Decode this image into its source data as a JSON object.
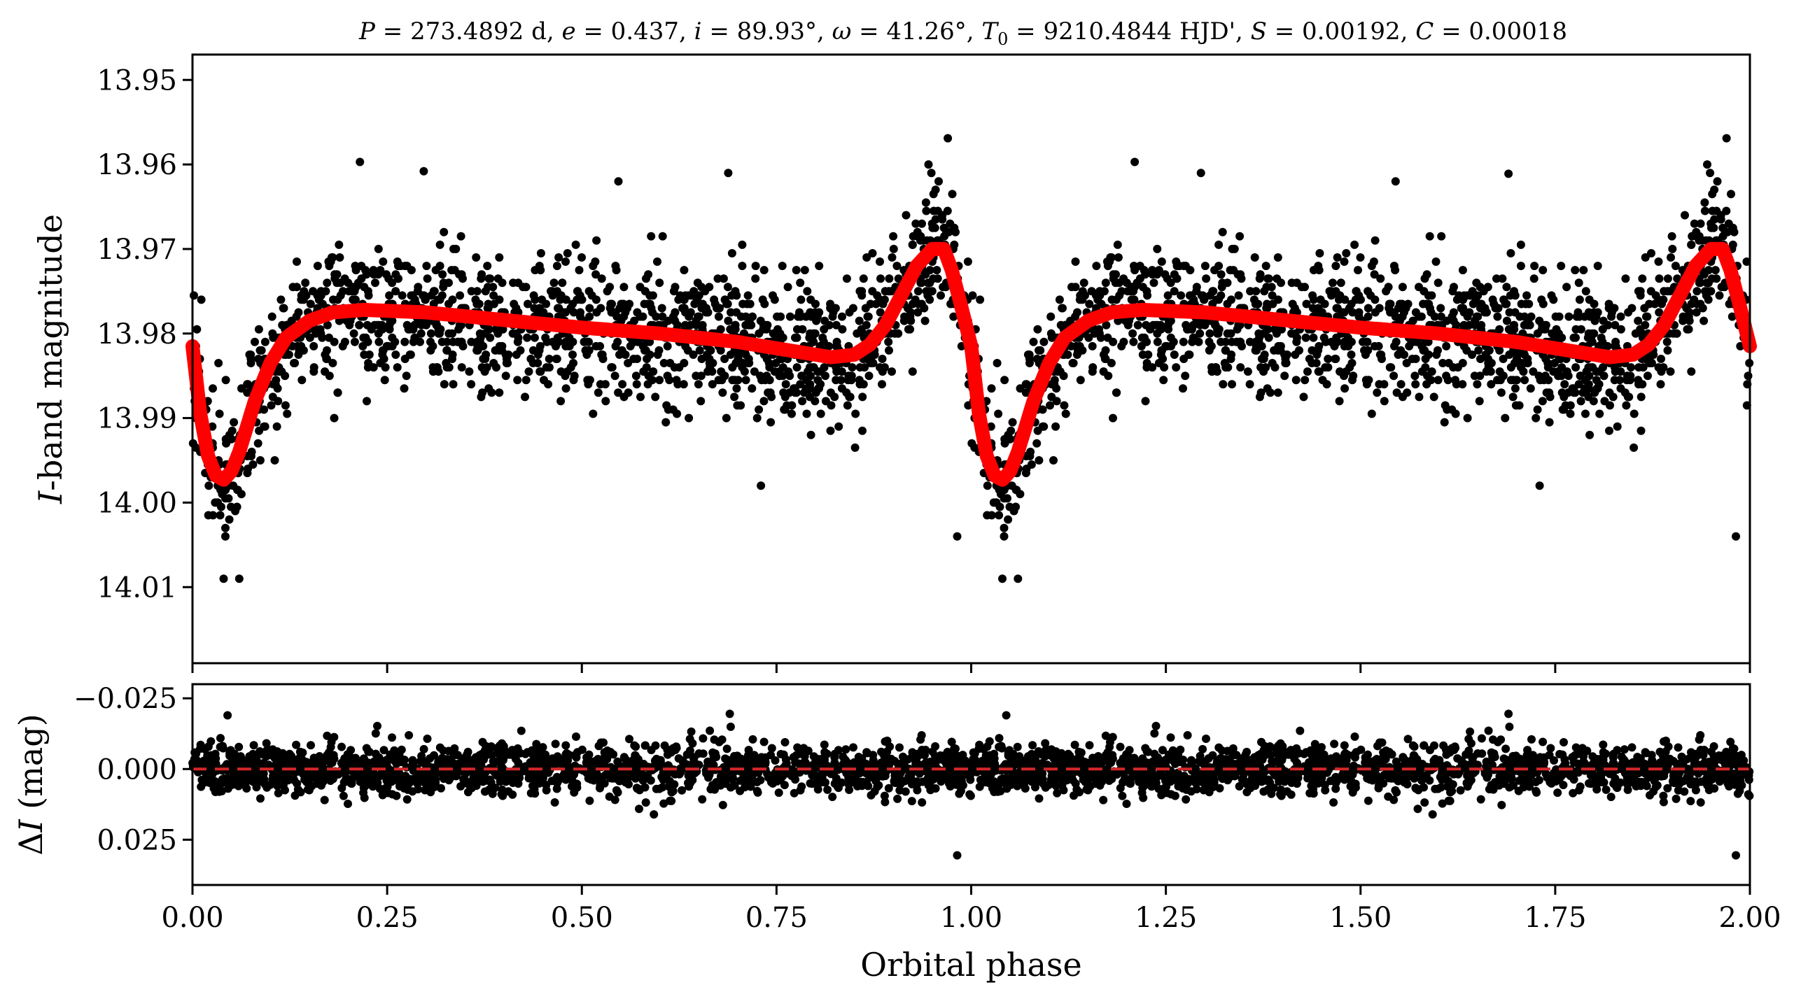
{
  "figure": {
    "title": "P = 273.4892 d, e = 0.437, i = 89.93°, ω = 41.26°, T0 = 9210.4844 HJD', S = 0.00192, C = 0.00018",
    "title_parts": {
      "P_sym": "P",
      "P_val": " = 273.4892 d, ",
      "e_sym": "e",
      "e_val": " = 0.437, ",
      "i_sym": "i",
      "i_val": " = 89.93°, ",
      "w_sym": "ω",
      "w_val": " = 41.26°, ",
      "T_sym": "T",
      "T_sub": "0",
      "T_val": " = 9210.4844 HJD', ",
      "S_sym": "S",
      "S_val": " = 0.00192, ",
      "C_sym": "C",
      "C_val": " = 0.00018"
    },
    "colors": {
      "data": "#000000",
      "model": "#ff0000",
      "zero_line": "#d62728",
      "axes": "#000000"
    }
  },
  "chart_data": [
    {
      "type": "scatter",
      "panel": "light curve",
      "xlabel": "",
      "ylabel": "I-band magnitude",
      "ylabel_parts": {
        "italic": "I",
        "rest": "-band magnitude"
      },
      "xlim": [
        0.0,
        2.0
      ],
      "ylim": [
        14.019,
        13.947
      ],
      "y_inverted": true,
      "yticks": [
        13.95,
        13.96,
        13.97,
        13.98,
        13.99,
        14.0,
        14.01
      ],
      "ytick_labels": [
        "13.95",
        "13.96",
        "13.97",
        "13.98",
        "13.99",
        "14.00",
        "14.01"
      ],
      "xticks": [
        0.0,
        0.25,
        0.5,
        0.75,
        1.0,
        1.25,
        1.5,
        1.75,
        2.0
      ],
      "xtick_labels": [],
      "grid": false,
      "series": [
        {
          "kind": "points",
          "color": "#000000",
          "description_of_points": "approx. 3000 observations per phase cycle, repeated over phase 0–2, scattered about the model",
          "x": [
            0.0,
            0.02,
            0.04,
            0.06,
            0.08,
            0.1,
            0.15,
            0.2,
            0.3,
            0.4,
            0.5,
            0.6,
            0.7,
            0.8,
            0.85,
            0.9,
            0.93,
            0.96,
            0.98,
            1.0,
            1.02,
            1.04,
            1.06,
            1.08,
            1.1,
            1.15,
            1.2,
            1.3,
            1.4,
            1.5,
            1.6,
            1.7,
            1.8,
            1.85,
            1.9,
            1.93,
            1.96,
            1.98,
            2.0
          ],
          "y": [
            13.982,
            13.993,
            13.997,
            13.995,
            13.988,
            13.983,
            13.979,
            13.978,
            13.978,
            13.979,
            13.979,
            13.98,
            13.981,
            13.982,
            13.982,
            13.978,
            13.973,
            13.97,
            13.977,
            13.982,
            13.993,
            13.997,
            13.995,
            13.988,
            13.983,
            13.979,
            13.978,
            13.978,
            13.979,
            13.979,
            13.98,
            13.981,
            13.982,
            13.982,
            13.978,
            13.973,
            13.97,
            13.977,
            13.982
          ],
          "scatter_sigma": 0.004,
          "outliers": [
            {
              "x": 0.215,
              "y": 13.9597
            },
            {
              "x": 0.297,
              "y": 13.9608
            },
            {
              "x": 0.547,
              "y": 13.962
            },
            {
              "x": 0.688,
              "y": 13.961
            },
            {
              "x": 0.97,
              "y": 13.9569
            },
            {
              "x": 0.982,
              "y": 14.004
            },
            {
              "x": 1.21,
              "y": 13.9597
            },
            {
              "x": 1.295,
              "y": 13.961
            },
            {
              "x": 1.545,
              "y": 13.962
            },
            {
              "x": 1.69,
              "y": 13.9611
            },
            {
              "x": 1.97,
              "y": 13.9569
            },
            {
              "x": 1.982,
              "y": 14.004
            },
            {
              "x": 0.04,
              "y": 14.009
            },
            {
              "x": 0.06,
              "y": 14.009
            },
            {
              "x": 1.04,
              "y": 14.009
            },
            {
              "x": 1.06,
              "y": 14.009
            },
            {
              "x": 0.73,
              "y": 13.998
            },
            {
              "x": 1.73,
              "y": 13.998
            }
          ]
        },
        {
          "kind": "model",
          "color": "#ff0000",
          "x": [
            0.0,
            0.01,
            0.02,
            0.03,
            0.04,
            0.05,
            0.06,
            0.08,
            0.1,
            0.12,
            0.15,
            0.18,
            0.22,
            0.3,
            0.4,
            0.5,
            0.6,
            0.7,
            0.78,
            0.82,
            0.85,
            0.87,
            0.89,
            0.91,
            0.93,
            0.95,
            0.965,
            0.975,
            0.985,
            1.0,
            1.01,
            1.02,
            1.03,
            1.04,
            1.05,
            1.06,
            1.08,
            1.1,
            1.12,
            1.15,
            1.18,
            1.22,
            1.3,
            1.4,
            1.5,
            1.6,
            1.7,
            1.78,
            1.82,
            1.85,
            1.87,
            1.89,
            1.91,
            1.93,
            1.95,
            1.965,
            1.975,
            1.985,
            2.0
          ],
          "y": [
            13.9815,
            13.9895,
            13.9945,
            13.9968,
            13.9973,
            13.9963,
            13.994,
            13.988,
            13.9835,
            13.9805,
            13.9785,
            13.9775,
            13.9772,
            13.9775,
            13.9784,
            13.9793,
            13.98,
            13.981,
            13.9822,
            13.9828,
            13.9825,
            13.9813,
            13.979,
            13.9755,
            13.972,
            13.97,
            13.97,
            13.9725,
            13.976,
            13.9815,
            13.9895,
            13.9945,
            13.9968,
            13.9973,
            13.9963,
            13.994,
            13.988,
            13.9835,
            13.9805,
            13.9785,
            13.9775,
            13.9772,
            13.9775,
            13.9784,
            13.9793,
            13.98,
            13.981,
            13.9822,
            13.9828,
            13.9825,
            13.9813,
            13.979,
            13.9755,
            13.972,
            13.97,
            13.97,
            13.9725,
            13.976,
            13.9815
          ]
        }
      ]
    },
    {
      "type": "scatter",
      "panel": "residuals",
      "xlabel": "Orbital phase",
      "ylabel": "ΔI (mag)",
      "ylabel_parts": {
        "delta": "Δ",
        "italic": "I",
        "rest": " (mag)"
      },
      "xlim": [
        0.0,
        2.0
      ],
      "ylim": [
        0.041,
        -0.03
      ],
      "y_inverted": true,
      "yticks": [
        -0.025,
        0.0,
        0.025
      ],
      "ytick_labels": [
        "−0.025",
        "0.000",
        "0.025"
      ],
      "xticks": [
        0.0,
        0.25,
        0.5,
        0.75,
        1.0,
        1.25,
        1.5,
        1.75,
        2.0
      ],
      "xtick_labels": [
        "0.00",
        "0.25",
        "0.50",
        "0.75",
        "1.00",
        "1.25",
        "1.50",
        "1.75",
        "2.00"
      ],
      "grid": false,
      "series": [
        {
          "kind": "points",
          "color": "#000000",
          "mean": 0.0,
          "scatter_sigma": 0.0045,
          "outliers": [
            {
              "x": 0.982,
              "y": 0.0305
            },
            {
              "x": 1.982,
              "y": 0.0305
            },
            {
              "x": 0.69,
              "y": -0.0195
            },
            {
              "x": 1.69,
              "y": -0.0195
            },
            {
              "x": 0.045,
              "y": -0.019
            },
            {
              "x": 1.045,
              "y": -0.019
            }
          ]
        },
        {
          "kind": "zero_line",
          "color": "#d62728",
          "style": "dashed",
          "y": 0.0
        }
      ]
    }
  ]
}
